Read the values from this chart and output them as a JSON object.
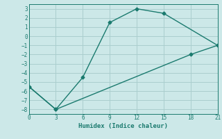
{
  "xlabel": "Humidex (Indice chaleur)",
  "line1_x": [
    0,
    3,
    6,
    9,
    12,
    15,
    21
  ],
  "line1_y": [
    -5.5,
    -8,
    -4.5,
    1.5,
    3,
    2.5,
    -1
  ],
  "line2_x": [
    0,
    3,
    18,
    21
  ],
  "line2_y": [
    -5.5,
    -8,
    -2,
    -1
  ],
  "line_color": "#1a7a6e",
  "bg_color": "#cce8e8",
  "grid_color": "#aacece",
  "xlim": [
    0,
    21
  ],
  "ylim": [
    -8.5,
    3.5
  ],
  "xticks": [
    0,
    3,
    6,
    9,
    12,
    15,
    18,
    21
  ],
  "yticks": [
    -8,
    -7,
    -6,
    -5,
    -4,
    -3,
    -2,
    -1,
    0,
    1,
    2,
    3
  ],
  "marker": "D",
  "markersize": 2.5,
  "linewidth": 1.0
}
